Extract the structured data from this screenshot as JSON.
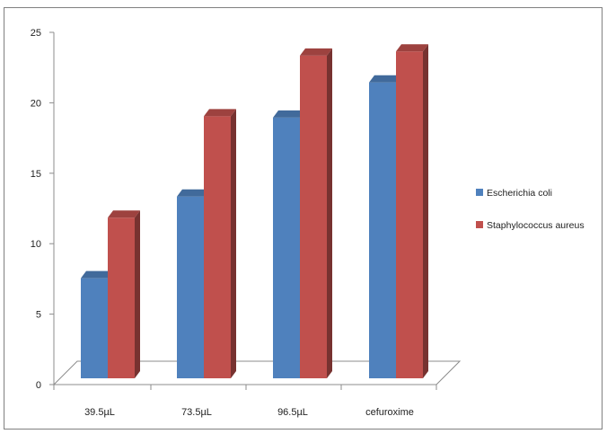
{
  "chart_data": {
    "type": "bar",
    "categories": [
      "39.5µL",
      "73.5µL",
      "96.5µL",
      "cefuroxime"
    ],
    "series": [
      {
        "name": "Escherichia coli",
        "values": [
          7.1,
          12.9,
          18.5,
          21.0
        ],
        "color": "#4f81bd"
      },
      {
        "name": "Staphylococcus aureus",
        "values": [
          11.4,
          18.6,
          22.9,
          23.2
        ],
        "color": "#c0504d"
      }
    ],
    "yticks": [
      "0",
      "5",
      "10",
      "15",
      "20",
      "25"
    ],
    "ylim": [
      0,
      25
    ],
    "grid": false,
    "legend_position": "right",
    "style": "3d-column"
  }
}
